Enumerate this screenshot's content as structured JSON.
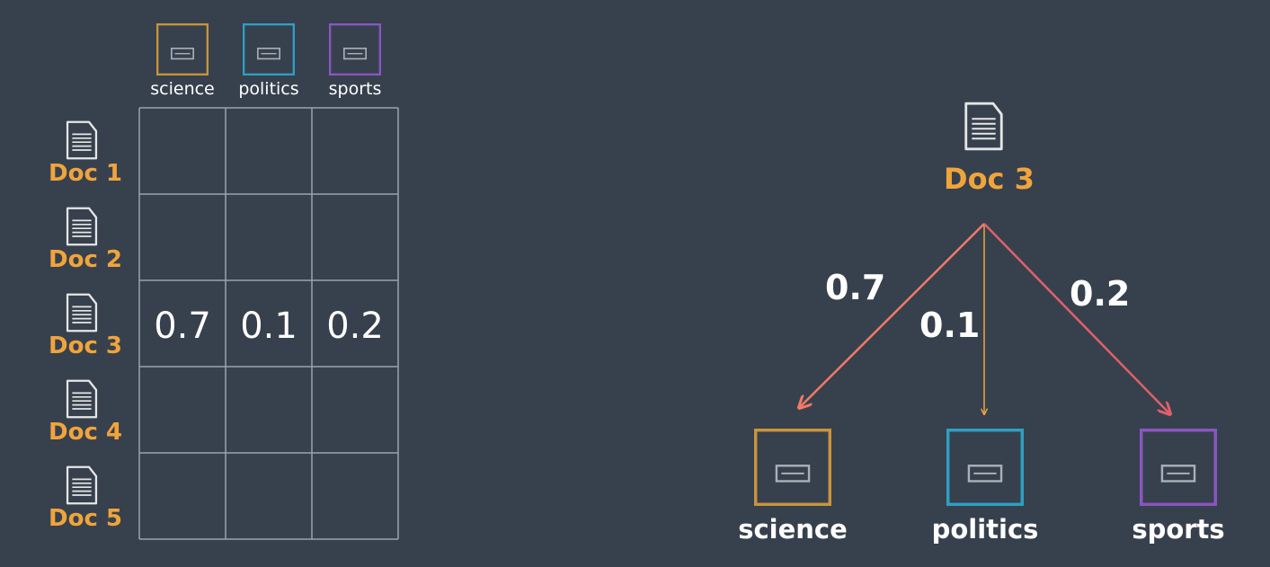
{
  "colors": {
    "background": "#37414d",
    "doc_label": "#f0a43c",
    "grid_line": "#9aa3ad",
    "icon": "#e6e6e6",
    "science": "#c9943c",
    "politics": "#2f9fc4",
    "sports": "#8b55c2",
    "arrow_science": "#f27a66",
    "arrow_politics": "#f0a43c",
    "arrow_sports": "#e0606a"
  },
  "matrix": {
    "topics": [
      {
        "label": "science",
        "color": "#c9943c",
        "icon": "topic-box-icon"
      },
      {
        "label": "politics",
        "color": "#2f9fc4",
        "icon": "topic-box-icon"
      },
      {
        "label": "sports",
        "color": "#8b55c2",
        "icon": "topic-box-icon"
      }
    ],
    "docs": [
      {
        "label": "Doc 1",
        "icon": "document-icon",
        "values": [
          "",
          "",
          ""
        ]
      },
      {
        "label": "Doc 2",
        "icon": "document-icon",
        "values": [
          "",
          "",
          ""
        ]
      },
      {
        "label": "Doc 3",
        "icon": "document-icon",
        "values": [
          "0.7",
          "0.1",
          "0.2"
        ]
      },
      {
        "label": "Doc 4",
        "icon": "document-icon",
        "values": [
          "",
          "",
          ""
        ]
      },
      {
        "label": "Doc 5",
        "icon": "document-icon",
        "values": [
          "",
          "",
          ""
        ]
      }
    ]
  },
  "tree": {
    "root": {
      "label": "Doc 3",
      "icon": "document-icon"
    },
    "edges": [
      {
        "target": "science",
        "weight": "0.7",
        "color": "#f27a66"
      },
      {
        "target": "politics",
        "weight": "0.1",
        "color": "#f0a43c"
      },
      {
        "target": "sports",
        "weight": "0.2",
        "color": "#e0606a"
      }
    ],
    "targets": [
      {
        "label": "science",
        "color": "#c9943c",
        "icon": "topic-box-icon"
      },
      {
        "label": "politics",
        "color": "#2f9fc4",
        "icon": "topic-box-icon"
      },
      {
        "label": "sports",
        "color": "#8b55c2",
        "icon": "topic-box-icon"
      }
    ]
  }
}
